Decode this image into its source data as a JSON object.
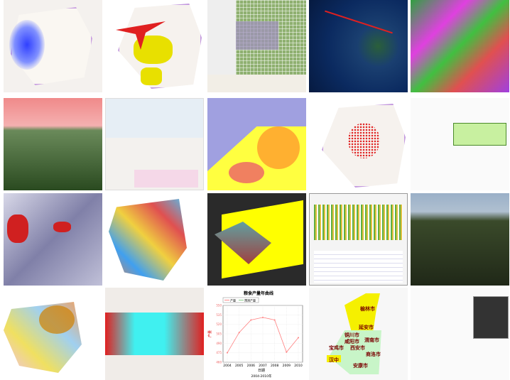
{
  "gallery": {
    "tiles": [
      {
        "name": "density-map"
      },
      {
        "name": "flow-arrow-map"
      },
      {
        "name": "grid-region-map"
      },
      {
        "name": "satellite-philippines"
      },
      {
        "name": "colored-terrain-raster"
      },
      {
        "name": "3d-terrain-sky"
      },
      {
        "name": "street-map"
      },
      {
        "name": "contour-zone-map"
      },
      {
        "name": "point-cluster-map"
      },
      {
        "name": "popup-info-map"
      },
      {
        "name": "cloud-satellite"
      },
      {
        "name": "landuse-map"
      },
      {
        "name": "3d-surface"
      },
      {
        "name": "chart-dashboard"
      },
      {
        "name": "3d-terrain-labels"
      },
      {
        "name": "province-district-map"
      },
      {
        "name": "vegetation-map"
      },
      {
        "name": "yield-chart"
      },
      {
        "name": "shaanxi-map"
      },
      {
        "name": "map-with-panel"
      }
    ]
  },
  "shaanxi": {
    "cities": [
      "榆林市",
      "延安市",
      "铜川市",
      "渭南市",
      "咸阳市",
      "宝鸡市",
      "西安市",
      "商洛市",
      "汉中",
      "安康市"
    ],
    "colors": {
      "north": "#f5f000",
      "south": "#c8f5c8"
    }
  },
  "chart_data": {
    "type": "line",
    "title": "粮食产量年曲线",
    "legend": [
      "产量",
      "预测产量"
    ],
    "legend_placement": "top-left",
    "xlabel": "日期",
    "xsublabel": "2004-2010年",
    "ylabel": "产量",
    "categories": [
      "2004",
      "2005",
      "2006",
      "2007",
      "2008",
      "2009",
      "2010"
    ],
    "series": [
      {
        "name": "产量",
        "values": [
          475,
          507,
          527,
          531,
          527,
          476,
          499
        ],
        "color": "#ff8080"
      }
    ],
    "yticks": [
      460,
      475,
      490,
      505,
      520,
      535,
      550
    ],
    "ylim": [
      460,
      550
    ],
    "grid": true
  }
}
